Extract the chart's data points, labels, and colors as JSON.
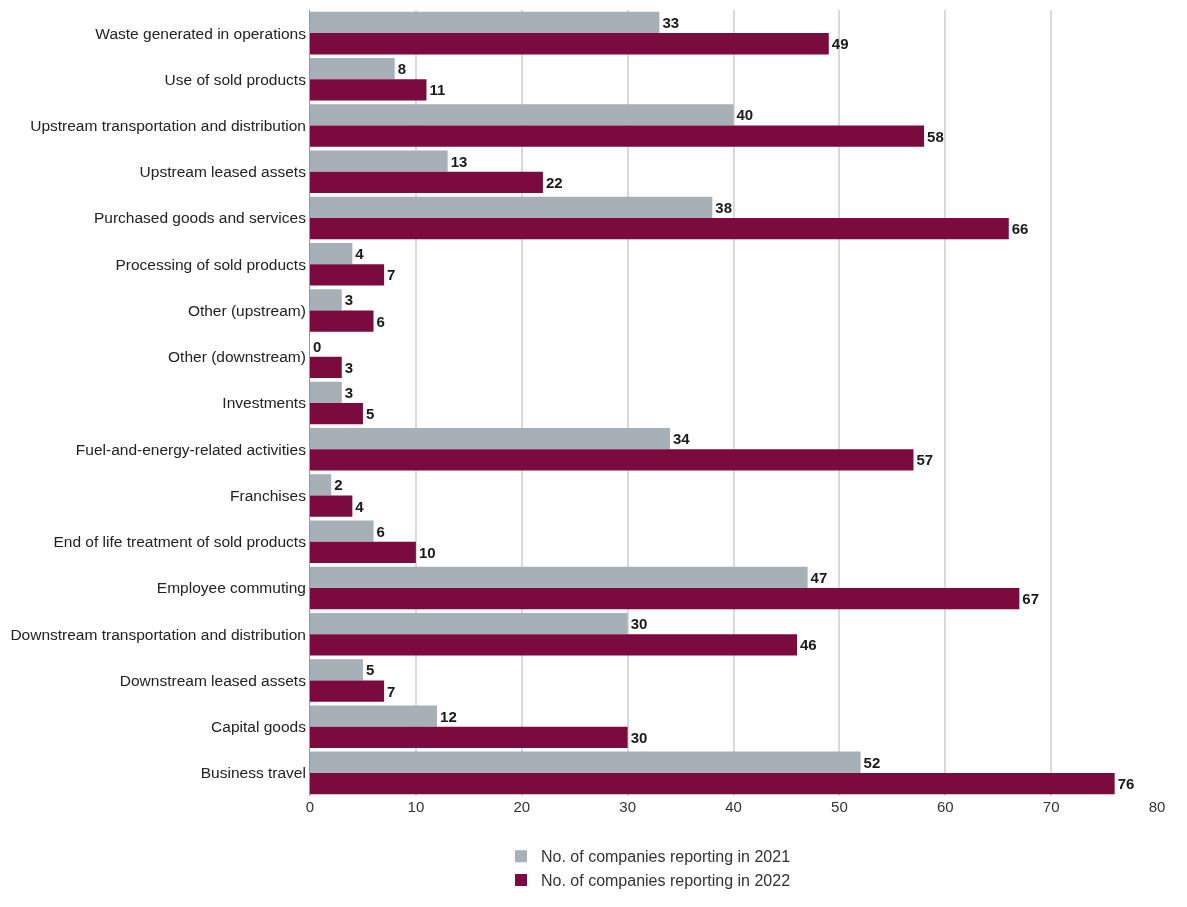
{
  "chart_data": {
    "type": "bar",
    "orientation": "horizontal",
    "categories": [
      "Waste generated in operations",
      "Use of sold products",
      "Upstream transportation and distribution",
      "Upstream leased assets",
      "Purchased goods and services",
      "Processing of sold products",
      "Other (upstream)",
      "Other (downstream)",
      "Investments",
      "Fuel-and-energy-related activities",
      "Franchises",
      "End of life treatment of sold products",
      "Employee commuting",
      "Downstream transportation and distribution",
      "Downstream leased assets",
      "Capital goods",
      "Business travel"
    ],
    "series": [
      {
        "name": "No. of companies reporting in 2021",
        "color": "#a7afb7",
        "values": [
          33,
          8,
          40,
          13,
          38,
          4,
          3,
          0,
          3,
          34,
          2,
          6,
          47,
          30,
          5,
          12,
          52
        ]
      },
      {
        "name": "No. of companies reporting in 2022",
        "color": "#7b0a3e",
        "values": [
          49,
          11,
          58,
          22,
          66,
          7,
          6,
          3,
          5,
          57,
          4,
          10,
          67,
          46,
          7,
          30,
          76
        ]
      }
    ],
    "xlim": [
      0,
      80
    ],
    "xticks": [
      0,
      10,
      20,
      30,
      40,
      50,
      60,
      70,
      80
    ],
    "grid": "x",
    "legend": "bottom",
    "data_labels": true
  }
}
